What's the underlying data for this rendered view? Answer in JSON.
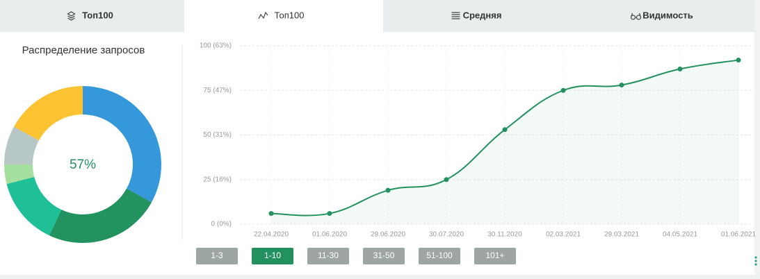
{
  "tabs": {
    "labels": [
      "Топ100",
      "Топ100",
      "Средняя",
      "Видимость"
    ],
    "active": 1
  },
  "chart_data": [
    {
      "type": "pie",
      "title": "Распределение запросов",
      "center_label": "57%",
      "values": [
        33,
        24,
        14,
        4,
        8,
        17
      ],
      "colors": [
        "#3498db",
        "#22925f",
        "#1fbf97",
        "#a6e09e",
        "#b6c7c5",
        "#fbc232"
      ]
    },
    {
      "type": "line",
      "categories": [
        "22.04.2020",
        "01.06.2020",
        "29.06.2020",
        "30.07.2020",
        "30.11.2020",
        "02.03.2021",
        "29.03.2021",
        "04.05.2021",
        "01.06.2021"
      ],
      "values": [
        6,
        6,
        19,
        25,
        53,
        75,
        78,
        87,
        92
      ],
      "color": "#22915f",
      "ylim": [
        0,
        100
      ],
      "yticks": [
        {
          "value": 0,
          "label": "0 (0%)"
        },
        {
          "value": 25,
          "label": "25 (16%)"
        },
        {
          "value": 50,
          "label": "50 (31%)"
        },
        {
          "value": 75,
          "label": "75 (47%)"
        },
        {
          "value": 100,
          "label": "100 (63%)"
        }
      ],
      "grid": true
    }
  ],
  "range_buttons": {
    "labels": [
      "1-3",
      "1-10",
      "11-30",
      "31-50",
      "51-100",
      "101+"
    ],
    "active": 1
  }
}
